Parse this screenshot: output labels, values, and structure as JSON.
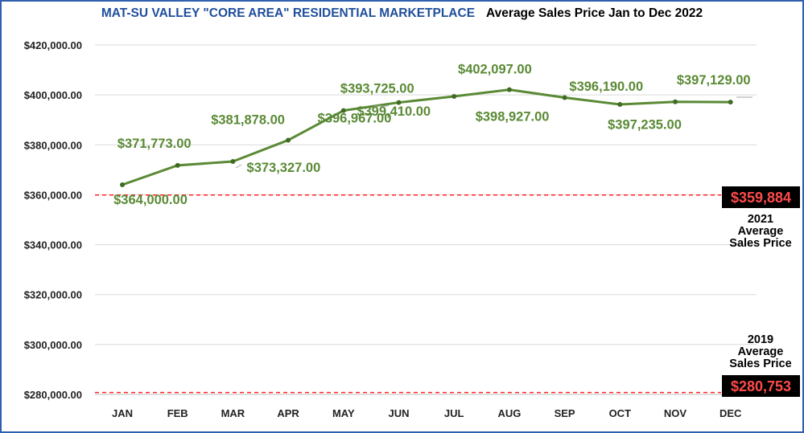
{
  "header": {
    "title": "MAT-SU VALLEY \"CORE AREA\" RESIDENTIAL MARKETPLACE",
    "subtitle": "Average Sales Price Jan to Dec 2022"
  },
  "chart_data": {
    "type": "line",
    "title": "MAT-SU VALLEY \"CORE AREA\" RESIDENTIAL MARKETPLACE",
    "subtitle": "Average Sales Price Jan to Dec 2022",
    "xlabel": "",
    "ylabel": "",
    "categories": [
      "JAN",
      "FEB",
      "MAR",
      "APR",
      "MAY",
      "JUN",
      "JUL",
      "AUG",
      "SEP",
      "OCT",
      "NOV",
      "DEC"
    ],
    "series": [
      {
        "name": "Average Sales Price 2022",
        "values": [
          364000,
          371773,
          373327,
          381878,
          393725,
          396967,
          399410,
          402097,
          398927,
          396190,
          397235,
          397129
        ],
        "labels": [
          "$364,000.00",
          "$371,773.00",
          "$373,327.00",
          "$381,878.00",
          "$393,725.00",
          "$396,967.00",
          "$399,410.00",
          "$402,097.00",
          "$398,927.00",
          "$396,190.00",
          "$397,235.00",
          "$397,129.00"
        ]
      }
    ],
    "ylim": [
      280000,
      420000
    ],
    "yticks": [
      280000,
      300000,
      320000,
      340000,
      360000,
      380000,
      400000,
      420000
    ],
    "ytick_labels": [
      "$280,000.00",
      "$300,000.00",
      "$320,000.00",
      "$340,000.00",
      "$360,000.00",
      "$380,000.00",
      "$400,000.00",
      "$420,000.00"
    ],
    "grid": true,
    "line_color": "#5a8a35",
    "reference_lines": [
      {
        "value": 359884,
        "label": "$359,884",
        "caption": [
          "2021",
          "Average",
          "Sales Price"
        ],
        "color": "#ff2020"
      },
      {
        "value": 280753,
        "label": "$280,753",
        "caption": [
          "2019",
          "Average",
          "Sales Price"
        ],
        "color": "#ff2020"
      }
    ]
  }
}
